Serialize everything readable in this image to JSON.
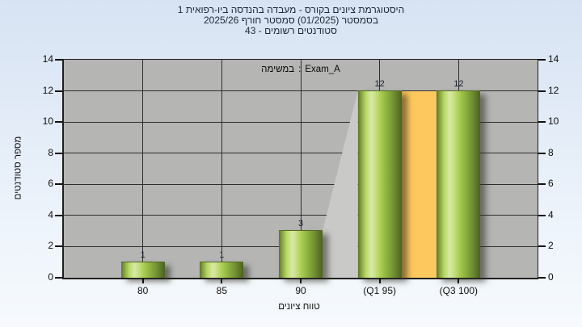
{
  "title": {
    "line1": "היסטוגרמת ציונים בקורס - מעבדה בהנדסה ביו-רפואית 1",
    "line2": "בסמסטר  (01/2025)  סמסטר חורף 2025/26",
    "line3": "סטודנטים רשומים - 43"
  },
  "legend": {
    "task_label": "במשימה",
    "separator": ":",
    "series_name": "Exam_A"
  },
  "chart_data": {
    "type": "bar",
    "categories": [
      "80",
      "85",
      "90",
      "(Q1 95)",
      "(Q3 100)"
    ],
    "values": [
      1,
      1,
      3,
      12,
      12
    ],
    "series": [
      {
        "name": "Exam_A",
        "values": [
          1,
          1,
          3,
          12,
          12
        ]
      }
    ],
    "bar_value_labels": [
      "1",
      "1",
      "3",
      "12",
      "12"
    ],
    "title": "היסטוגרמת ציונים בקורס - מעבדה בהנדסה ביו-רפואית 1 בסמסטר (01/2025) סמסטר חורף 2025/26 סטודנטים רשומים - 43",
    "xlabel": "טווח ציונים",
    "ylabel": "מספר סטודנטים",
    "ylim": [
      0,
      14
    ],
    "ytick_step": 2,
    "yticks": [
      0,
      2,
      4,
      6,
      8,
      10,
      12,
      14
    ],
    "grid": true,
    "legend_label": "במשימה : Exam_A",
    "legend_position": "top-center",
    "highlight_band": {
      "from_index": 3,
      "to_index": 4,
      "top_value": 12,
      "color": "#fdc95e"
    },
    "connector_shade": {
      "from_index": 2,
      "to_index": 3,
      "color": "#c9c9c7"
    },
    "colors": {
      "bar_green": "#8fb83c",
      "band_yellow": "#fdc95e",
      "plot_background": "#b5b5b4",
      "gridline": "#2e2e2e",
      "page_background_top": "#d7e3f3",
      "page_background_bottom": "#f6fafd",
      "title_text": "#1d2836"
    }
  }
}
